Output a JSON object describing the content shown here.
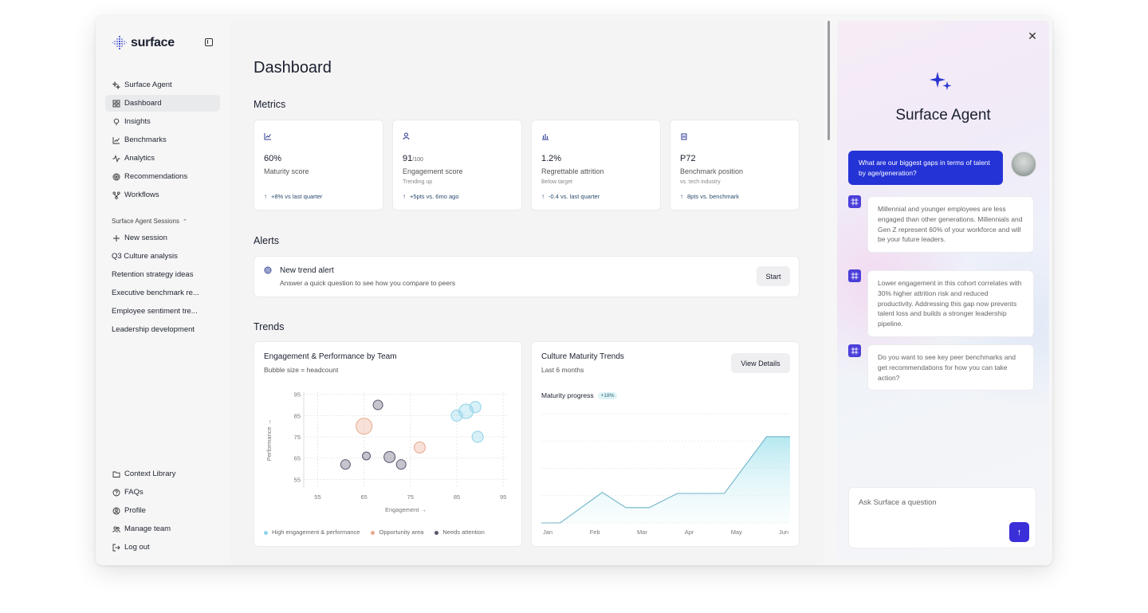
{
  "brand": {
    "name": "surface"
  },
  "sidebar": {
    "nav": [
      {
        "label": "Surface Agent",
        "icon": "sparkle-icon"
      },
      {
        "label": "Dashboard",
        "icon": "grid-icon",
        "active": true
      },
      {
        "label": "Insights",
        "icon": "lightbulb-icon"
      },
      {
        "label": "Benchmarks",
        "icon": "line-chart-icon"
      },
      {
        "label": "Analytics",
        "icon": "activity-icon"
      },
      {
        "label": "Recommendations",
        "icon": "target-icon"
      },
      {
        "label": "Workflows",
        "icon": "workflow-icon"
      }
    ],
    "sessions_label": "Surface Agent Sessions",
    "new_session": "New session",
    "sessions": [
      "Q3 Culture analysis",
      "Retention strategy ideas",
      "Executive benchmark re...",
      "Employee sentiment tre...",
      "Leadership development"
    ],
    "bottom": [
      {
        "label": "Context Library",
        "icon": "folder-icon"
      },
      {
        "label": "FAQs",
        "icon": "help-icon"
      },
      {
        "label": "Profile",
        "icon": "user-circle-icon"
      },
      {
        "label": "Manage team",
        "icon": "users-icon"
      },
      {
        "label": "Log out",
        "icon": "logout-icon"
      }
    ]
  },
  "main": {
    "title": "Dashboard",
    "metrics_title": "Metrics",
    "metrics": [
      {
        "value": "60%",
        "value_sub": "",
        "label": "Maturity score",
        "note": "",
        "delta": "+8% vs last quarter",
        "icon": "trend-up-icon"
      },
      {
        "value": "91",
        "value_sub": "/100",
        "label": "Engagement score",
        "note": "Trending up",
        "delta": "+5pts vs. 6mo ago",
        "icon": "user-icon"
      },
      {
        "value": "1.2%",
        "value_sub": "",
        "label": "Regrettable attrition",
        "note": "Below target",
        "delta": "-0.4 vs. last quarter",
        "icon": "bar-chart-icon"
      },
      {
        "value": "P72",
        "value_sub": "",
        "label": "Benchmark position",
        "note": "vs. tech industry",
        "delta": "8pts vs. benchmark",
        "icon": "building-icon"
      }
    ],
    "alerts_title": "Alerts",
    "alert": {
      "title": "New trend alert",
      "description": "Answer a quick question to see how you compare to peers",
      "button": "Start"
    },
    "trends_title": "Trends",
    "bubble_card": {
      "title": "Engagement & Performance by Team",
      "subtitle": "Bubble size = headcount",
      "legend": [
        "High engagement & performance",
        "Opportunity area",
        "Needs attention"
      ]
    },
    "maturity_card": {
      "title": "Culture Maturity Trends",
      "subtitle": "Last 6 months",
      "button": "View Details",
      "progress_label": "Maturity progress",
      "progress_badge": "+18%"
    }
  },
  "chart_data": [
    {
      "type": "scatter",
      "title": "Engagement & Performance by Team",
      "xlabel": "Engagement →",
      "ylabel": "Performance →",
      "xlim": [
        52,
        96
      ],
      "ylim": [
        51,
        96
      ],
      "xticks": [
        55,
        65,
        75,
        85,
        95
      ],
      "yticks": [
        95,
        85,
        75,
        65,
        55
      ],
      "grid": true,
      "legend_position": "bottom",
      "series": [
        {
          "name": "High engagement & performance",
          "color": "#8fd3e8",
          "points": [
            {
              "x": 85,
              "y": 85,
              "size": 7
            },
            {
              "x": 87,
              "y": 87,
              "size": 9
            },
            {
              "x": 89,
              "y": 89,
              "size": 7
            },
            {
              "x": 89.5,
              "y": 75,
              "size": 7
            }
          ]
        },
        {
          "name": "Opportunity area",
          "color": "#e7a98f",
          "points": [
            {
              "x": 65,
              "y": 80,
              "size": 10
            },
            {
              "x": 77,
              "y": 70,
              "size": 7
            }
          ]
        },
        {
          "name": "Needs attention",
          "color": "#5b5570",
          "points": [
            {
              "x": 68,
              "y": 90,
              "size": 6
            },
            {
              "x": 61,
              "y": 62,
              "size": 6
            },
            {
              "x": 65.5,
              "y": 66,
              "size": 5
            },
            {
              "x": 70.5,
              "y": 65.5,
              "size": 7
            },
            {
              "x": 73,
              "y": 62,
              "size": 6
            }
          ]
        }
      ]
    },
    {
      "type": "area",
      "title": "Culture Maturity Trends",
      "x": [
        "Jan",
        "Feb",
        "Mar",
        "Apr",
        "May",
        "Jun"
      ],
      "grid": true,
      "points": [
        {
          "x": 0,
          "y": 0
        },
        {
          "x": 0.4,
          "y": 0
        },
        {
          "x": 1.3,
          "y": 28
        },
        {
          "x": 1.8,
          "y": 14
        },
        {
          "x": 2.3,
          "y": 14
        },
        {
          "x": 2.9,
          "y": 27
        },
        {
          "x": 3.9,
          "y": 27
        },
        {
          "x": 4.8,
          "y": 79
        },
        {
          "x": 5.3,
          "y": 79
        }
      ],
      "ylim": [
        0,
        100
      ]
    }
  ],
  "agent": {
    "title": "Surface Agent",
    "user_message": "What are our biggest gaps in terms of talent by age/generation?",
    "responses": [
      "Millennial and younger employees are less engaged than other generations. Millennials and Gen Z represent 60% of your workforce and will be your future leaders.",
      "Lower engagement in this cohort correlates with 30% higher attrition risk and reduced productivity. Addressing this gap now prevents talent loss and builds a stronger leadership pipeline.",
      "Do you want to see key peer benchmarks and get recommendations for how you can take action?"
    ],
    "input_placeholder": "Ask Surface a question"
  },
  "colors": {
    "accent": "#2433d6",
    "send": "#3a2fd8",
    "bot_icon": "#4b3fd9"
  }
}
